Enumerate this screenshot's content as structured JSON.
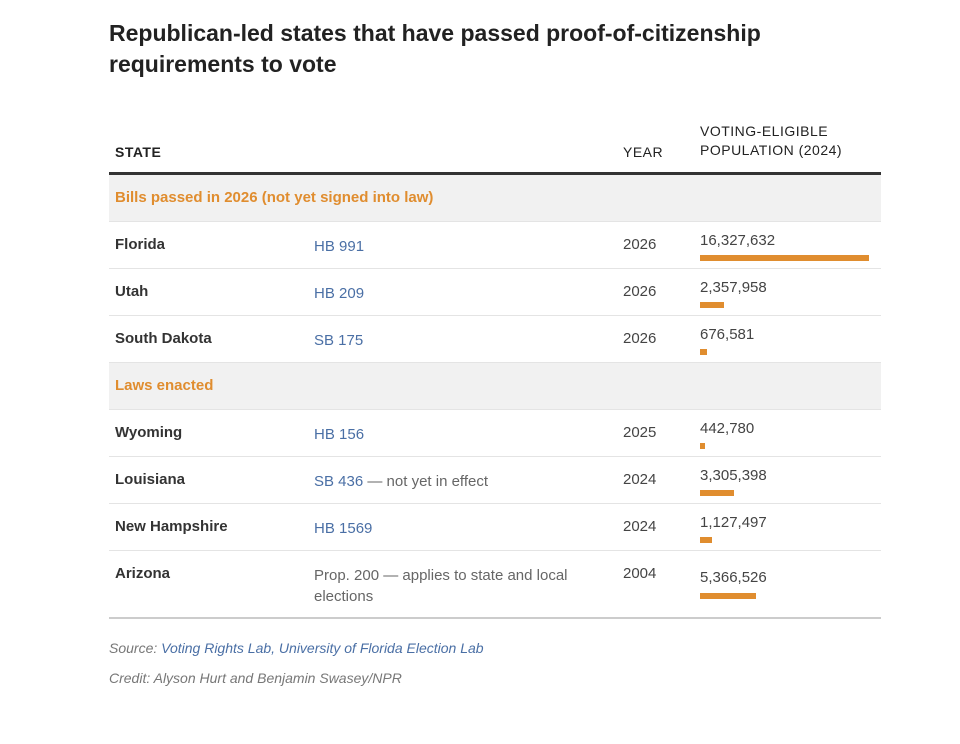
{
  "title": "Republican-led states that have passed proof-of-citizenship requirements to vote",
  "columns": {
    "state": "STATE",
    "year": "YEAR",
    "population": "VOTING-ELIGIBLE POPULATION (2024)"
  },
  "colors": {
    "accent": "#e08d2f",
    "link": "#4a6fa5"
  },
  "chart_data": {
    "type": "table",
    "groups": [
      {
        "label": "Bills passed in 2026 (not yet signed into law)",
        "rows": [
          {
            "state": "Florida",
            "bill": "HB 991",
            "note": "",
            "year": "2026",
            "population_label": "16,327,632",
            "population": 16327632
          },
          {
            "state": "Utah",
            "bill": "HB 209",
            "note": "",
            "year": "2026",
            "population_label": "2,357,958",
            "population": 2357958
          },
          {
            "state": "South Dakota",
            "bill": "SB 175",
            "note": "",
            "year": "2026",
            "population_label": "676,581",
            "population": 676581
          }
        ]
      },
      {
        "label": "Laws enacted",
        "rows": [
          {
            "state": "Wyoming",
            "bill": "HB 156",
            "note": "",
            "year": "2025",
            "population_label": "442,780",
            "population": 442780
          },
          {
            "state": "Louisiana",
            "bill": "SB 436",
            "note": " — not yet in effect",
            "year": "2024",
            "population_label": "3,305,398",
            "population": 3305398
          },
          {
            "state": "New Hampshire",
            "bill": "HB 1569",
            "note": "",
            "year": "2024",
            "population_label": "1,127,497",
            "population": 1127497
          },
          {
            "state": "Arizona",
            "bill": "",
            "note": "Prop. 200 — applies to state and local elections",
            "year": "2004",
            "population_label": "5,366,526",
            "population": 5366526
          }
        ]
      }
    ]
  },
  "footer": {
    "source_label": "Source: ",
    "source_text": "Voting Rights Lab, University of Florida Election Lab",
    "credit": "Credit: Alyson Hurt and Benjamin Swasey/NPR"
  }
}
